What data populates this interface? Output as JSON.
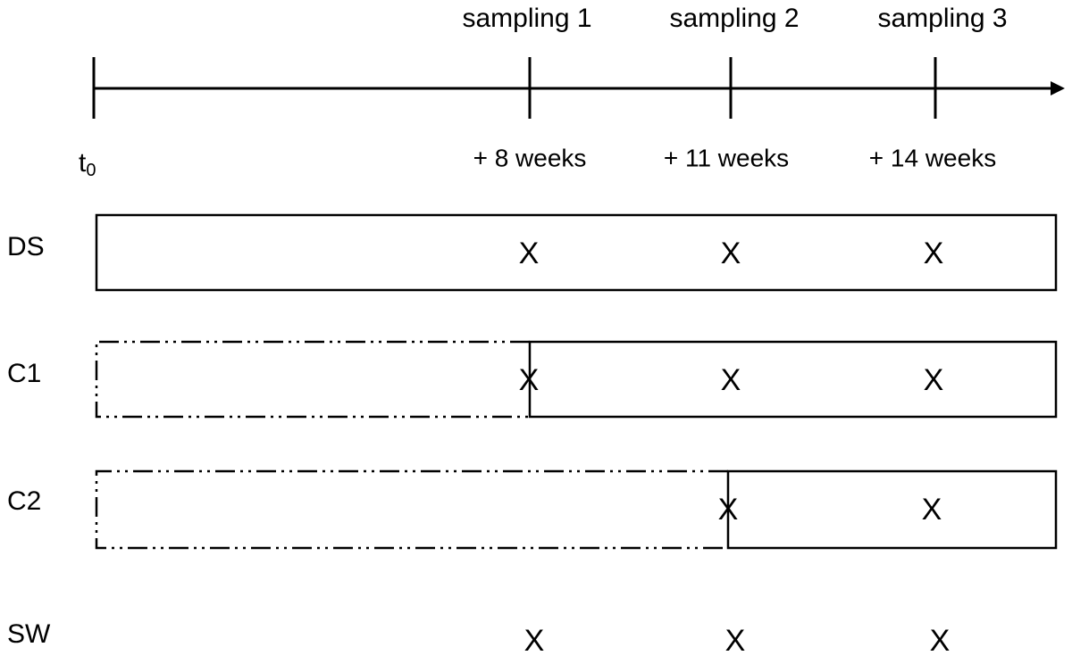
{
  "timeline": {
    "start": {
      "label": "t",
      "subscript": "0"
    },
    "samplings": [
      {
        "title": "sampling 1",
        "time": "+ 8 weeks"
      },
      {
        "title": "sampling 2",
        "time": "+ 11 weeks"
      },
      {
        "title": "sampling 3",
        "time": "+ 14 weeks"
      }
    ]
  },
  "rows": [
    {
      "label": "DS",
      "marks": [
        "X",
        "X",
        "X"
      ]
    },
    {
      "label": "C1",
      "marks": [
        "X",
        "X",
        "X"
      ]
    },
    {
      "label": "C2",
      "marks": [
        "X",
        "X"
      ]
    },
    {
      "label": "SW",
      "marks": [
        "X",
        "X",
        "X"
      ]
    }
  ]
}
